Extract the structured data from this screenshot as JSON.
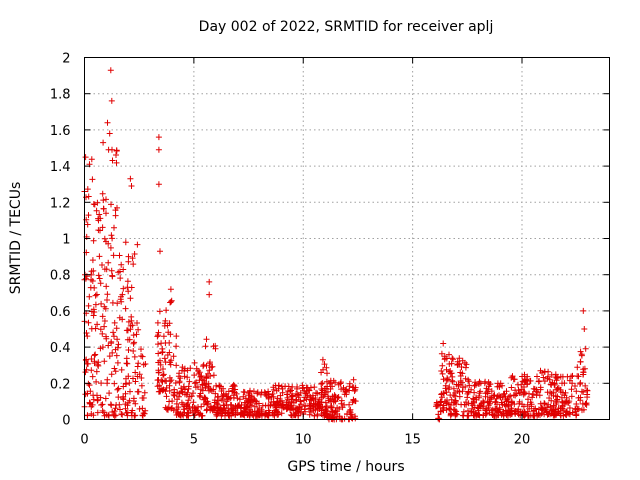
{
  "chart_data": {
    "type": "scatter",
    "title": "Day 002 of 2022, SRMTID for receiver aplj",
    "xlabel": "GPS time / hours",
    "ylabel": "SRMTID / TECUs",
    "xlim": [
      0,
      24
    ],
    "ylim": [
      0,
      2
    ],
    "xticks": [
      0,
      5,
      10,
      15,
      20
    ],
    "yticks": [
      0,
      0.2,
      0.4,
      0.6,
      0.8,
      1,
      1.2,
      1.4,
      1.6,
      1.8,
      2
    ],
    "xtick_labels": [
      "0",
      "5",
      "10",
      "15",
      "20"
    ],
    "ytick_labels": [
      "0",
      "0.2",
      "0.4",
      "0.6",
      "0.8",
      "1",
      "1.2",
      "1.4",
      "1.6",
      "1.8",
      "2"
    ],
    "grid": true,
    "marker": "+",
    "color": "#e00000",
    "data_gap_hours": [
      12.5,
      16.0
    ],
    "notable_points": [
      {
        "x": 1.2,
        "y": 1.93
      },
      {
        "x": 1.25,
        "y": 1.76
      },
      {
        "x": 1.05,
        "y": 1.64
      },
      {
        "x": 1.15,
        "y": 1.58
      },
      {
        "x": 0.85,
        "y": 1.53
      },
      {
        "x": 1.1,
        "y": 1.49
      },
      {
        "x": 0.05,
        "y": 1.45
      },
      {
        "x": 3.4,
        "y": 1.56
      },
      {
        "x": 3.4,
        "y": 1.49
      },
      {
        "x": 3.4,
        "y": 1.3
      },
      {
        "x": 3.45,
        "y": 0.93
      },
      {
        "x": 2.1,
        "y": 1.33
      },
      {
        "x": 2.15,
        "y": 1.29
      },
      {
        "x": 5.7,
        "y": 0.76
      },
      {
        "x": 5.7,
        "y": 0.69
      },
      {
        "x": 22.8,
        "y": 0.6
      },
      {
        "x": 22.85,
        "y": 0.5
      },
      {
        "x": 16.4,
        "y": 0.42
      },
      {
        "x": 10.9,
        "y": 0.33
      },
      {
        "x": 3.95,
        "y": 0.72
      }
    ],
    "segments": [
      {
        "x0": 0.0,
        "x1": 0.5,
        "lo": 0.02,
        "hi": 1.45,
        "density": 70
      },
      {
        "x0": 0.5,
        "x1": 1.0,
        "lo": 0.02,
        "hi": 1.35,
        "density": 60
      },
      {
        "x0": 1.0,
        "x1": 1.5,
        "lo": 0.02,
        "hi": 1.5,
        "density": 55
      },
      {
        "x0": 1.5,
        "x1": 2.0,
        "lo": 0.02,
        "hi": 1.05,
        "density": 50
      },
      {
        "x0": 2.0,
        "x1": 2.5,
        "lo": 0.02,
        "hi": 1.0,
        "density": 45
      },
      {
        "x0": 2.5,
        "x1": 2.8,
        "lo": 0.02,
        "hi": 0.4,
        "density": 18
      },
      {
        "x0": 3.3,
        "x1": 3.7,
        "lo": 0.15,
        "hi": 0.6,
        "density": 40
      },
      {
        "x0": 3.7,
        "x1": 4.2,
        "lo": 0.05,
        "hi": 0.68,
        "density": 45
      },
      {
        "x0": 4.2,
        "x1": 5.0,
        "lo": 0.02,
        "hi": 0.3,
        "density": 70
      },
      {
        "x0": 5.0,
        "x1": 5.5,
        "lo": 0.02,
        "hi": 0.32,
        "density": 45
      },
      {
        "x0": 5.5,
        "x1": 6.0,
        "lo": 0.05,
        "hi": 0.45,
        "density": 50
      },
      {
        "x0": 6.0,
        "x1": 7.0,
        "lo": 0.02,
        "hi": 0.2,
        "density": 90
      },
      {
        "x0": 7.0,
        "x1": 8.5,
        "lo": 0.02,
        "hi": 0.16,
        "density": 120
      },
      {
        "x0": 8.5,
        "x1": 10.0,
        "lo": 0.02,
        "hi": 0.2,
        "density": 120
      },
      {
        "x0": 10.0,
        "x1": 10.7,
        "lo": 0.02,
        "hi": 0.18,
        "density": 60
      },
      {
        "x0": 10.7,
        "x1": 11.1,
        "lo": 0.02,
        "hi": 0.32,
        "density": 45
      },
      {
        "x0": 11.1,
        "x1": 12.4,
        "lo": 0.0,
        "hi": 0.22,
        "density": 100
      },
      {
        "x0": 16.0,
        "x1": 16.3,
        "lo": 0.0,
        "hi": 0.1,
        "density": 15
      },
      {
        "x0": 16.3,
        "x1": 16.7,
        "lo": 0.05,
        "hi": 0.4,
        "density": 40
      },
      {
        "x0": 16.7,
        "x1": 17.5,
        "lo": 0.02,
        "hi": 0.34,
        "density": 70
      },
      {
        "x0": 17.5,
        "x1": 18.5,
        "lo": 0.02,
        "hi": 0.22,
        "density": 80
      },
      {
        "x0": 18.5,
        "x1": 19.5,
        "lo": 0.02,
        "hi": 0.2,
        "density": 80
      },
      {
        "x0": 19.5,
        "x1": 20.5,
        "lo": 0.02,
        "hi": 0.25,
        "density": 80
      },
      {
        "x0": 20.5,
        "x1": 21.5,
        "lo": 0.02,
        "hi": 0.27,
        "density": 80
      },
      {
        "x0": 21.5,
        "x1": 22.5,
        "lo": 0.02,
        "hi": 0.25,
        "density": 80
      },
      {
        "x0": 22.5,
        "x1": 23.0,
        "lo": 0.05,
        "hi": 0.4,
        "density": 35
      }
    ]
  }
}
